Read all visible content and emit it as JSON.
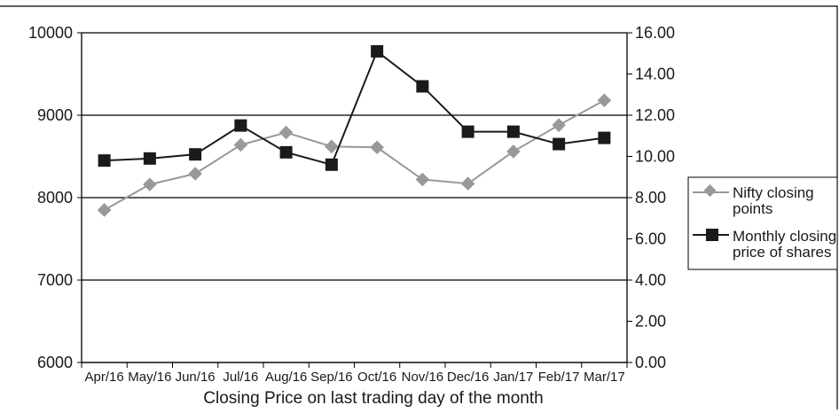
{
  "chart_data": {
    "type": "line",
    "title": "",
    "xlabel": "Closing Price on last trading day of the month",
    "categories": [
      "Apr/16",
      "May/16",
      "Jun/16",
      "Jul/16",
      "Aug/16",
      "Sep/16",
      "Oct/16",
      "Nov/16",
      "Dec/16",
      "Jan/17",
      "Feb/17",
      "Mar/17"
    ],
    "y_left": {
      "ylim": [
        6000,
        10000
      ],
      "ticks": [
        6000,
        7000,
        8000,
        9000,
        10000
      ],
      "tick_labels": [
        "6000",
        "7000",
        "8000",
        "9000",
        "10000"
      ]
    },
    "y_right": {
      "ylim": [
        0,
        16
      ],
      "ticks": [
        0,
        2,
        4,
        6,
        8,
        10,
        12,
        14,
        16
      ],
      "tick_labels": [
        "0.00",
        "2.00",
        "4.00",
        "6.00",
        "8.00",
        "10.00",
        "12.00",
        "14.00",
        "16.00"
      ]
    },
    "grid": "horizontal major lines at left-axis ticks",
    "legend": {
      "placement": "right"
    },
    "series": [
      {
        "name": "Nifty closing points",
        "axis": "left",
        "marker": "diamond",
        "color": "#999999",
        "values": [
          7850,
          8160,
          8290,
          8640,
          8790,
          8620,
          8610,
          8220,
          8170,
          8560,
          8880,
          9180
        ]
      },
      {
        "name": "Monthly closing price of shares",
        "axis": "right",
        "marker": "square",
        "color": "#1a1a1a",
        "values": [
          9.8,
          9.9,
          10.1,
          11.5,
          10.2,
          9.6,
          15.1,
          13.4,
          11.2,
          11.2,
          10.6,
          10.9
        ]
      }
    ]
  }
}
